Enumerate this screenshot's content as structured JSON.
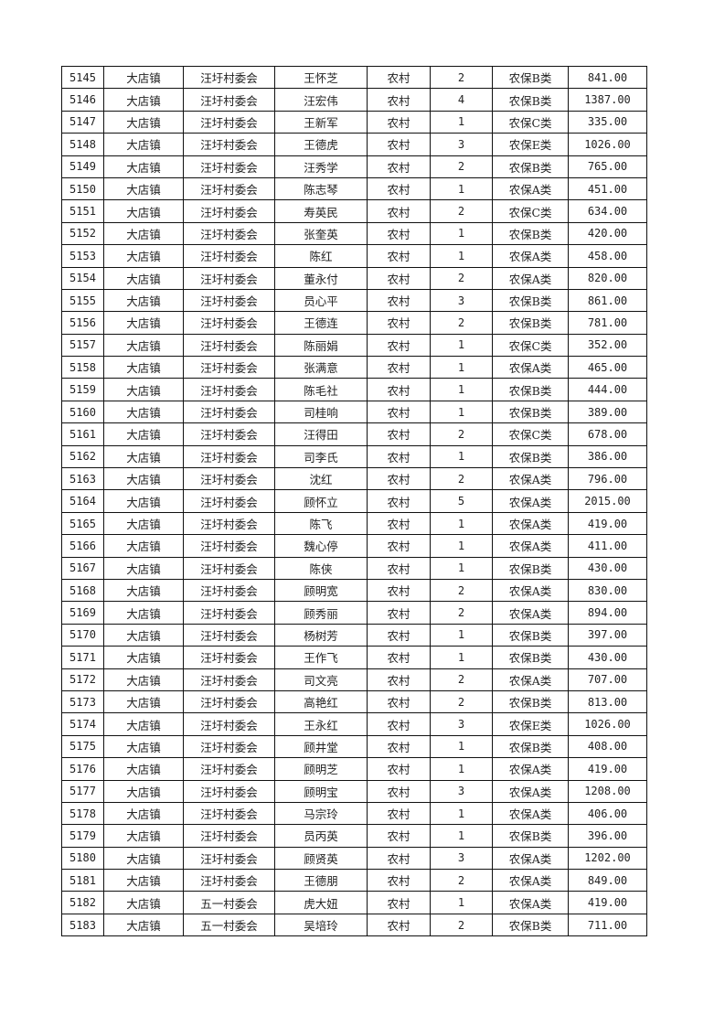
{
  "rows": [
    [
      "5145",
      "大店镇",
      "汪圩村委会",
      "王怀芝",
      "农村",
      "2",
      "农保B类",
      "841.00"
    ],
    [
      "5146",
      "大店镇",
      "汪圩村委会",
      "汪宏伟",
      "农村",
      "4",
      "农保B类",
      "1387.00"
    ],
    [
      "5147",
      "大店镇",
      "汪圩村委会",
      "王新军",
      "农村",
      "1",
      "农保C类",
      "335.00"
    ],
    [
      "5148",
      "大店镇",
      "汪圩村委会",
      "王德虎",
      "农村",
      "3",
      "农保E类",
      "1026.00"
    ],
    [
      "5149",
      "大店镇",
      "汪圩村委会",
      "汪秀学",
      "农村",
      "2",
      "农保B类",
      "765.00"
    ],
    [
      "5150",
      "大店镇",
      "汪圩村委会",
      "陈志琴",
      "农村",
      "1",
      "农保A类",
      "451.00"
    ],
    [
      "5151",
      "大店镇",
      "汪圩村委会",
      "寿英民",
      "农村",
      "2",
      "农保C类",
      "634.00"
    ],
    [
      "5152",
      "大店镇",
      "汪圩村委会",
      "张奎英",
      "农村",
      "1",
      "农保B类",
      "420.00"
    ],
    [
      "5153",
      "大店镇",
      "汪圩村委会",
      "陈红",
      "农村",
      "1",
      "农保A类",
      "458.00"
    ],
    [
      "5154",
      "大店镇",
      "汪圩村委会",
      "董永付",
      "农村",
      "2",
      "农保A类",
      "820.00"
    ],
    [
      "5155",
      "大店镇",
      "汪圩村委会",
      "员心平",
      "农村",
      "3",
      "农保B类",
      "861.00"
    ],
    [
      "5156",
      "大店镇",
      "汪圩村委会",
      "王德连",
      "农村",
      "2",
      "农保B类",
      "781.00"
    ],
    [
      "5157",
      "大店镇",
      "汪圩村委会",
      "陈丽娟",
      "农村",
      "1",
      "农保C类",
      "352.00"
    ],
    [
      "5158",
      "大店镇",
      "汪圩村委会",
      "张满意",
      "农村",
      "1",
      "农保A类",
      "465.00"
    ],
    [
      "5159",
      "大店镇",
      "汪圩村委会",
      "陈毛社",
      "农村",
      "1",
      "农保B类",
      "444.00"
    ],
    [
      "5160",
      "大店镇",
      "汪圩村委会",
      "司桂响",
      "农村",
      "1",
      "农保B类",
      "389.00"
    ],
    [
      "5161",
      "大店镇",
      "汪圩村委会",
      "汪得田",
      "农村",
      "2",
      "农保C类",
      "678.00"
    ],
    [
      "5162",
      "大店镇",
      "汪圩村委会",
      "司李氏",
      "农村",
      "1",
      "农保B类",
      "386.00"
    ],
    [
      "5163",
      "大店镇",
      "汪圩村委会",
      "沈红",
      "农村",
      "2",
      "农保A类",
      "796.00"
    ],
    [
      "5164",
      "大店镇",
      "汪圩村委会",
      "顾怀立",
      "农村",
      "5",
      "农保A类",
      "2015.00"
    ],
    [
      "5165",
      "大店镇",
      "汪圩村委会",
      "陈飞",
      "农村",
      "1",
      "农保A类",
      "419.00"
    ],
    [
      "5166",
      "大店镇",
      "汪圩村委会",
      "魏心停",
      "农村",
      "1",
      "农保A类",
      "411.00"
    ],
    [
      "5167",
      "大店镇",
      "汪圩村委会",
      "陈侠",
      "农村",
      "1",
      "农保B类",
      "430.00"
    ],
    [
      "5168",
      "大店镇",
      "汪圩村委会",
      "顾明宽",
      "农村",
      "2",
      "农保A类",
      "830.00"
    ],
    [
      "5169",
      "大店镇",
      "汪圩村委会",
      "顾秀丽",
      "农村",
      "2",
      "农保A类",
      "894.00"
    ],
    [
      "5170",
      "大店镇",
      "汪圩村委会",
      "杨树芳",
      "农村",
      "1",
      "农保B类",
      "397.00"
    ],
    [
      "5171",
      "大店镇",
      "汪圩村委会",
      "王作飞",
      "农村",
      "1",
      "农保B类",
      "430.00"
    ],
    [
      "5172",
      "大店镇",
      "汪圩村委会",
      "司文亮",
      "农村",
      "2",
      "农保A类",
      "707.00"
    ],
    [
      "5173",
      "大店镇",
      "汪圩村委会",
      "高艳红",
      "农村",
      "2",
      "农保B类",
      "813.00"
    ],
    [
      "5174",
      "大店镇",
      "汪圩村委会",
      "王永红",
      "农村",
      "3",
      "农保E类",
      "1026.00"
    ],
    [
      "5175",
      "大店镇",
      "汪圩村委会",
      "顾井堂",
      "农村",
      "1",
      "农保B类",
      "408.00"
    ],
    [
      "5176",
      "大店镇",
      "汪圩村委会",
      "顾明芝",
      "农村",
      "1",
      "农保A类",
      "419.00"
    ],
    [
      "5177",
      "大店镇",
      "汪圩村委会",
      "顾明宝",
      "农村",
      "3",
      "农保A类",
      "1208.00"
    ],
    [
      "5178",
      "大店镇",
      "汪圩村委会",
      "马宗玲",
      "农村",
      "1",
      "农保A类",
      "406.00"
    ],
    [
      "5179",
      "大店镇",
      "汪圩村委会",
      "员丙英",
      "农村",
      "1",
      "农保B类",
      "396.00"
    ],
    [
      "5180",
      "大店镇",
      "汪圩村委会",
      "顾贤英",
      "农村",
      "3",
      "农保A类",
      "1202.00"
    ],
    [
      "5181",
      "大店镇",
      "汪圩村委会",
      "王德朋",
      "农村",
      "2",
      "农保A类",
      "849.00"
    ],
    [
      "5182",
      "大店镇",
      "五一村委会",
      "虎大妞",
      "农村",
      "1",
      "农保A类",
      "419.00"
    ],
    [
      "5183",
      "大店镇",
      "五一村委会",
      "吴培玲",
      "农村",
      "2",
      "农保B类",
      "711.00"
    ]
  ]
}
